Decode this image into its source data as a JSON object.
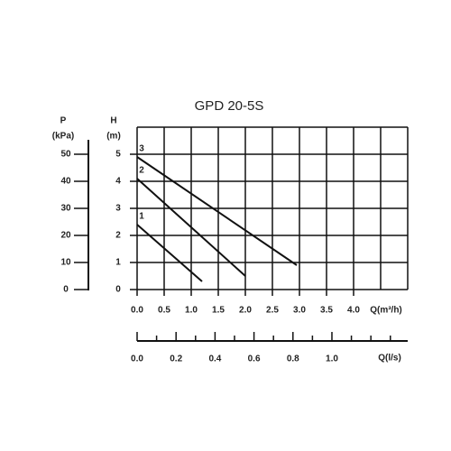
{
  "chart_data": {
    "type": "line",
    "title": "GPD 20-5S",
    "y_label": "H",
    "y_unit": "(m)",
    "y2_label": "P",
    "y2_unit": "(kPa)",
    "x_label": "Q(m³/h)",
    "x2_label": "Q(l/s)",
    "xlim": [
      0,
      5
    ],
    "ylim": [
      0,
      6
    ],
    "y2lim": [
      0,
      60
    ],
    "x2lim": [
      0,
      1.389
    ],
    "xticks": [
      {
        "value": 0,
        "label": "0.0"
      },
      {
        "value": 0.5,
        "label": "0.5"
      },
      {
        "value": 1,
        "label": "1.0"
      },
      {
        "value": 1.5,
        "label": "1.5"
      },
      {
        "value": 2,
        "label": "2.0"
      },
      {
        "value": 2.5,
        "label": "2.5"
      },
      {
        "value": 3,
        "label": "3.0"
      },
      {
        "value": 3.5,
        "label": "3.5"
      },
      {
        "value": 4,
        "label": "4.0"
      }
    ],
    "xgrid": [
      0,
      0.5,
      1,
      1.5,
      2,
      2.5,
      3,
      3.5,
      4,
      4.5,
      5
    ],
    "ygrid": [
      0,
      1,
      2,
      3,
      4,
      5,
      6
    ],
    "yticks": [
      0,
      1,
      2,
      3,
      4,
      5
    ],
    "y2ticks": [
      0,
      10,
      20,
      30,
      40,
      50
    ],
    "x2ticks": [
      {
        "value": 0,
        "label": "0.0"
      },
      {
        "value": 0.2,
        "label": "0.2"
      },
      {
        "value": 0.4,
        "label": "0.4"
      },
      {
        "value": 0.6,
        "label": "0.6"
      },
      {
        "value": 0.8,
        "label": "0.8"
      },
      {
        "value": 1,
        "label": "1.0"
      }
    ],
    "x2minor": [
      0.1,
      0.3,
      0.5,
      0.7,
      0.9,
      1.1,
      1.2,
      1.3
    ],
    "color": "#111",
    "series": [
      {
        "name": "1",
        "x": [
          0,
          1.2
        ],
        "values": [
          2.4,
          0.3
        ]
      },
      {
        "name": "2",
        "x": [
          0,
          2.0
        ],
        "values": [
          4.1,
          0.5
        ]
      },
      {
        "name": "3",
        "x": [
          0,
          2.95
        ],
        "values": [
          4.9,
          0.9
        ]
      }
    ]
  }
}
